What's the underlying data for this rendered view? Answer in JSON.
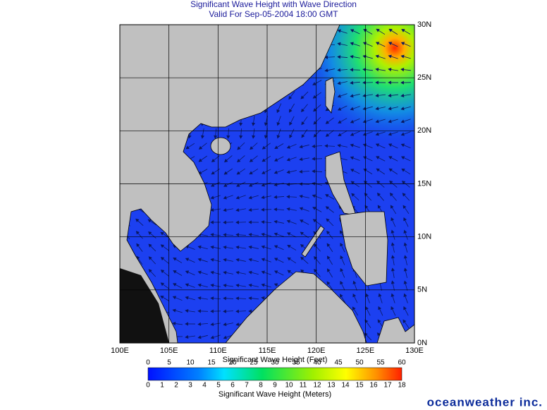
{
  "header": {
    "title": "Significant Wave Height with Wave Direction",
    "subtitle": "Valid For Sep-05-2004 18:00 GMT"
  },
  "map": {
    "lon_labels": [
      "100E",
      "105E",
      "110E",
      "115E",
      "120E",
      "125E",
      "130E"
    ],
    "lat_labels": [
      "0N",
      "5N",
      "10N",
      "15N",
      "20N",
      "25N",
      "30N"
    ]
  },
  "legend": {
    "feet_title": "Significant Wave Height (Feet)",
    "feet_ticks": [
      0,
      5,
      10,
      15,
      20,
      25,
      30,
      35,
      40,
      45,
      50,
      55,
      60
    ],
    "meters_title": "Significant Wave Height (Meters)",
    "meters_ticks": [
      0,
      1,
      2,
      3,
      4,
      5,
      6,
      7,
      8,
      9,
      10,
      11,
      12,
      13,
      14,
      15,
      16,
      17,
      18
    ]
  },
  "brand": "oceanweather inc."
}
